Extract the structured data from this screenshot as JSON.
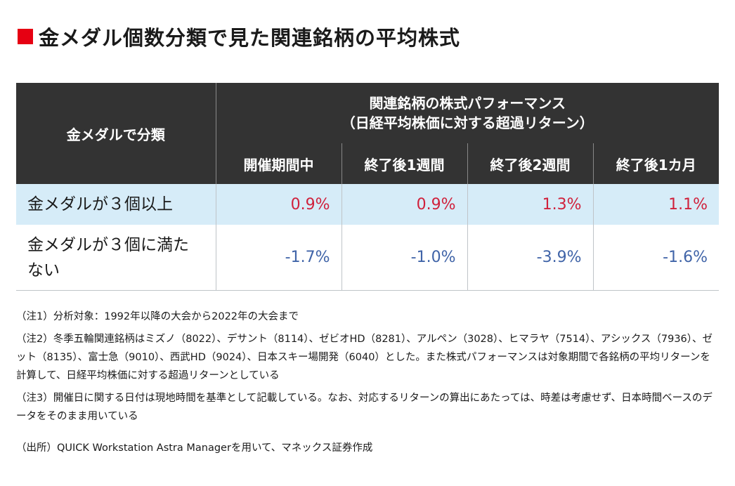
{
  "title": "金メダル個数分類で見た関連銘柄の平均株式",
  "colors": {
    "accent": "#e60012",
    "header_bg": "#333333",
    "highlight_row": "#d6ecf8",
    "positive": "#d0213c",
    "negative": "#4064a8"
  },
  "chart_data": {
    "type": "table",
    "header": {
      "category": "金メダルで分類",
      "perf_line1": "関連銘柄の株式パフォーマンス",
      "perf_line2": "（日経平均株価に対する超過リターン）",
      "columns": [
        "開催期間中",
        "終了後1週間",
        "終了後2週間",
        "終了後1カ月"
      ]
    },
    "rows": [
      {
        "label": "金メダルが３個以上",
        "values": [
          "0.9%",
          "0.9%",
          "1.3%",
          "1.1%"
        ]
      },
      {
        "label_line1": "金メダルが３個に満た",
        "label_line2": "ない",
        "values": [
          "-1.7%",
          "-1.0%",
          "-3.9%",
          "-1.6%"
        ]
      }
    ]
  },
  "notes": [
    "（注1）分析対象：1992年以降の大会から2022年の大会まで",
    "（注2）冬季五輪関連銘柄はミズノ（8022）、デサント（8114）、ゼビオHD（8281）、アルペン（3028）、ヒマラヤ（7514）、アシックス（7936）、ゼット（8135）、富士急（9010）、西武HD（9024）、日本スキー場開発（6040）とした。また株式パフォーマンスは対象期間で各銘柄の平均リターンを計算して、日経平均株価に対する超過リターンとしている",
    "（注3）開催日に関する日付は現地時間を基準として記載している。なお、対応するリターンの算出にあたっては、時差は考慮せず、日本時間ベースのデータをそのまま用いている"
  ],
  "source": "（出所）QUICK Workstation Astra Managerを用いて、マネックス証券作成"
}
